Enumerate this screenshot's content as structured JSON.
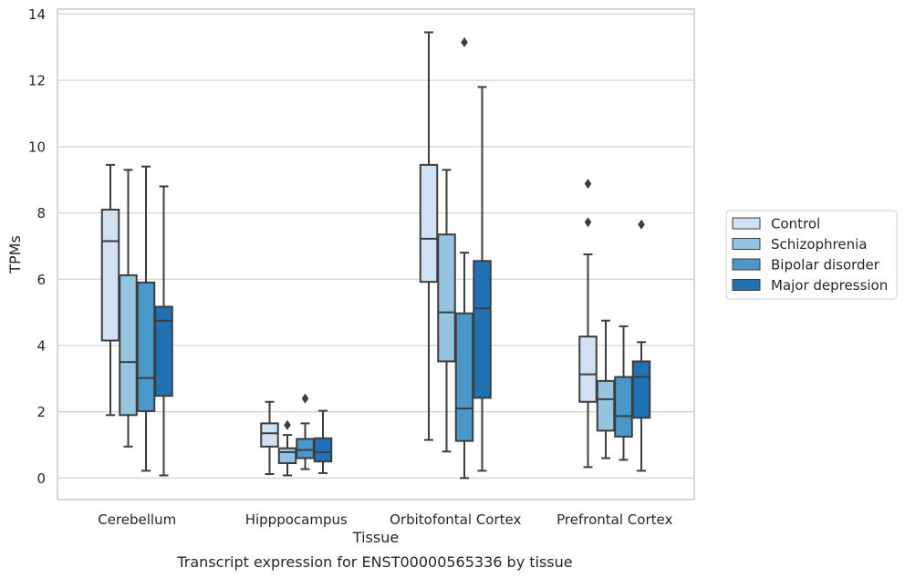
{
  "chart_data": {
    "type": "boxplot",
    "xlabel": "Tissue",
    "ylabel": "TPMs",
    "caption": "Transcript expression for ENST00000565336 by tissue",
    "ylim": [
      -0.65,
      14.15
    ],
    "y_ticks": [
      "0",
      "2",
      "4",
      "6",
      "8",
      "10",
      "12",
      "14"
    ],
    "grid": "horizontal",
    "legend_position": "right",
    "categories": [
      "Cerebellum",
      "Hipppocampus",
      "Orbitofontal Cortex",
      "Prefrontal Cortex"
    ],
    "series": [
      {
        "name": "Control",
        "color": "#d0e1f2",
        "boxes": [
          {
            "min": 1.9,
            "q1": 4.15,
            "median": 7.15,
            "q3": 8.1,
            "max": 9.45,
            "outliers": []
          },
          {
            "min": 0.12,
            "q1": 0.95,
            "median": 1.35,
            "q3": 1.65,
            "max": 2.3,
            "outliers": []
          },
          {
            "min": 1.15,
            "q1": 5.92,
            "median": 7.22,
            "q3": 9.45,
            "max": 13.45,
            "outliers": []
          },
          {
            "min": 0.33,
            "q1": 2.3,
            "median": 3.13,
            "q3": 4.27,
            "max": 6.75,
            "outliers": [
              7.72,
              8.88
            ]
          }
        ]
      },
      {
        "name": "Schizophrenia",
        "color": "#94c4df",
        "boxes": [
          {
            "min": 0.95,
            "q1": 1.9,
            "median": 3.5,
            "q3": 6.12,
            "max": 9.3,
            "outliers": []
          },
          {
            "min": 0.08,
            "q1": 0.45,
            "median": 0.78,
            "q3": 0.9,
            "max": 1.3,
            "outliers": [
              1.6
            ]
          },
          {
            "min": 0.8,
            "q1": 3.52,
            "median": 5.0,
            "q3": 7.35,
            "max": 9.3,
            "outliers": []
          },
          {
            "min": 0.6,
            "q1": 1.43,
            "median": 2.38,
            "q3": 2.93,
            "max": 4.75,
            "outliers": []
          }
        ]
      },
      {
        "name": "Bipolar disorder",
        "color": "#4a98c9",
        "boxes": [
          {
            "min": 0.22,
            "q1": 2.02,
            "median": 3.02,
            "q3": 5.9,
            "max": 9.4,
            "outliers": []
          },
          {
            "min": 0.27,
            "q1": 0.6,
            "median": 0.85,
            "q3": 1.18,
            "max": 1.65,
            "outliers": [
              2.4
            ]
          },
          {
            "min": 0.0,
            "q1": 1.12,
            "median": 2.1,
            "q3": 4.97,
            "max": 6.8,
            "outliers": [
              13.15
            ]
          },
          {
            "min": 0.55,
            "q1": 1.25,
            "median": 1.87,
            "q3": 3.05,
            "max": 4.58,
            "outliers": []
          }
        ]
      },
      {
        "name": "Major depression",
        "color": "#2171b5",
        "boxes": [
          {
            "min": 0.08,
            "q1": 2.48,
            "median": 4.75,
            "q3": 5.17,
            "max": 8.8,
            "outliers": []
          },
          {
            "min": 0.15,
            "q1": 0.5,
            "median": 0.78,
            "q3": 1.2,
            "max": 2.03,
            "outliers": []
          },
          {
            "min": 0.22,
            "q1": 2.42,
            "median": 5.12,
            "q3": 6.55,
            "max": 11.8,
            "outliers": []
          },
          {
            "min": 0.22,
            "q1": 1.82,
            "median": 3.05,
            "q3": 3.52,
            "max": 4.1,
            "outliers": [
              7.65
            ]
          }
        ]
      }
    ]
  }
}
